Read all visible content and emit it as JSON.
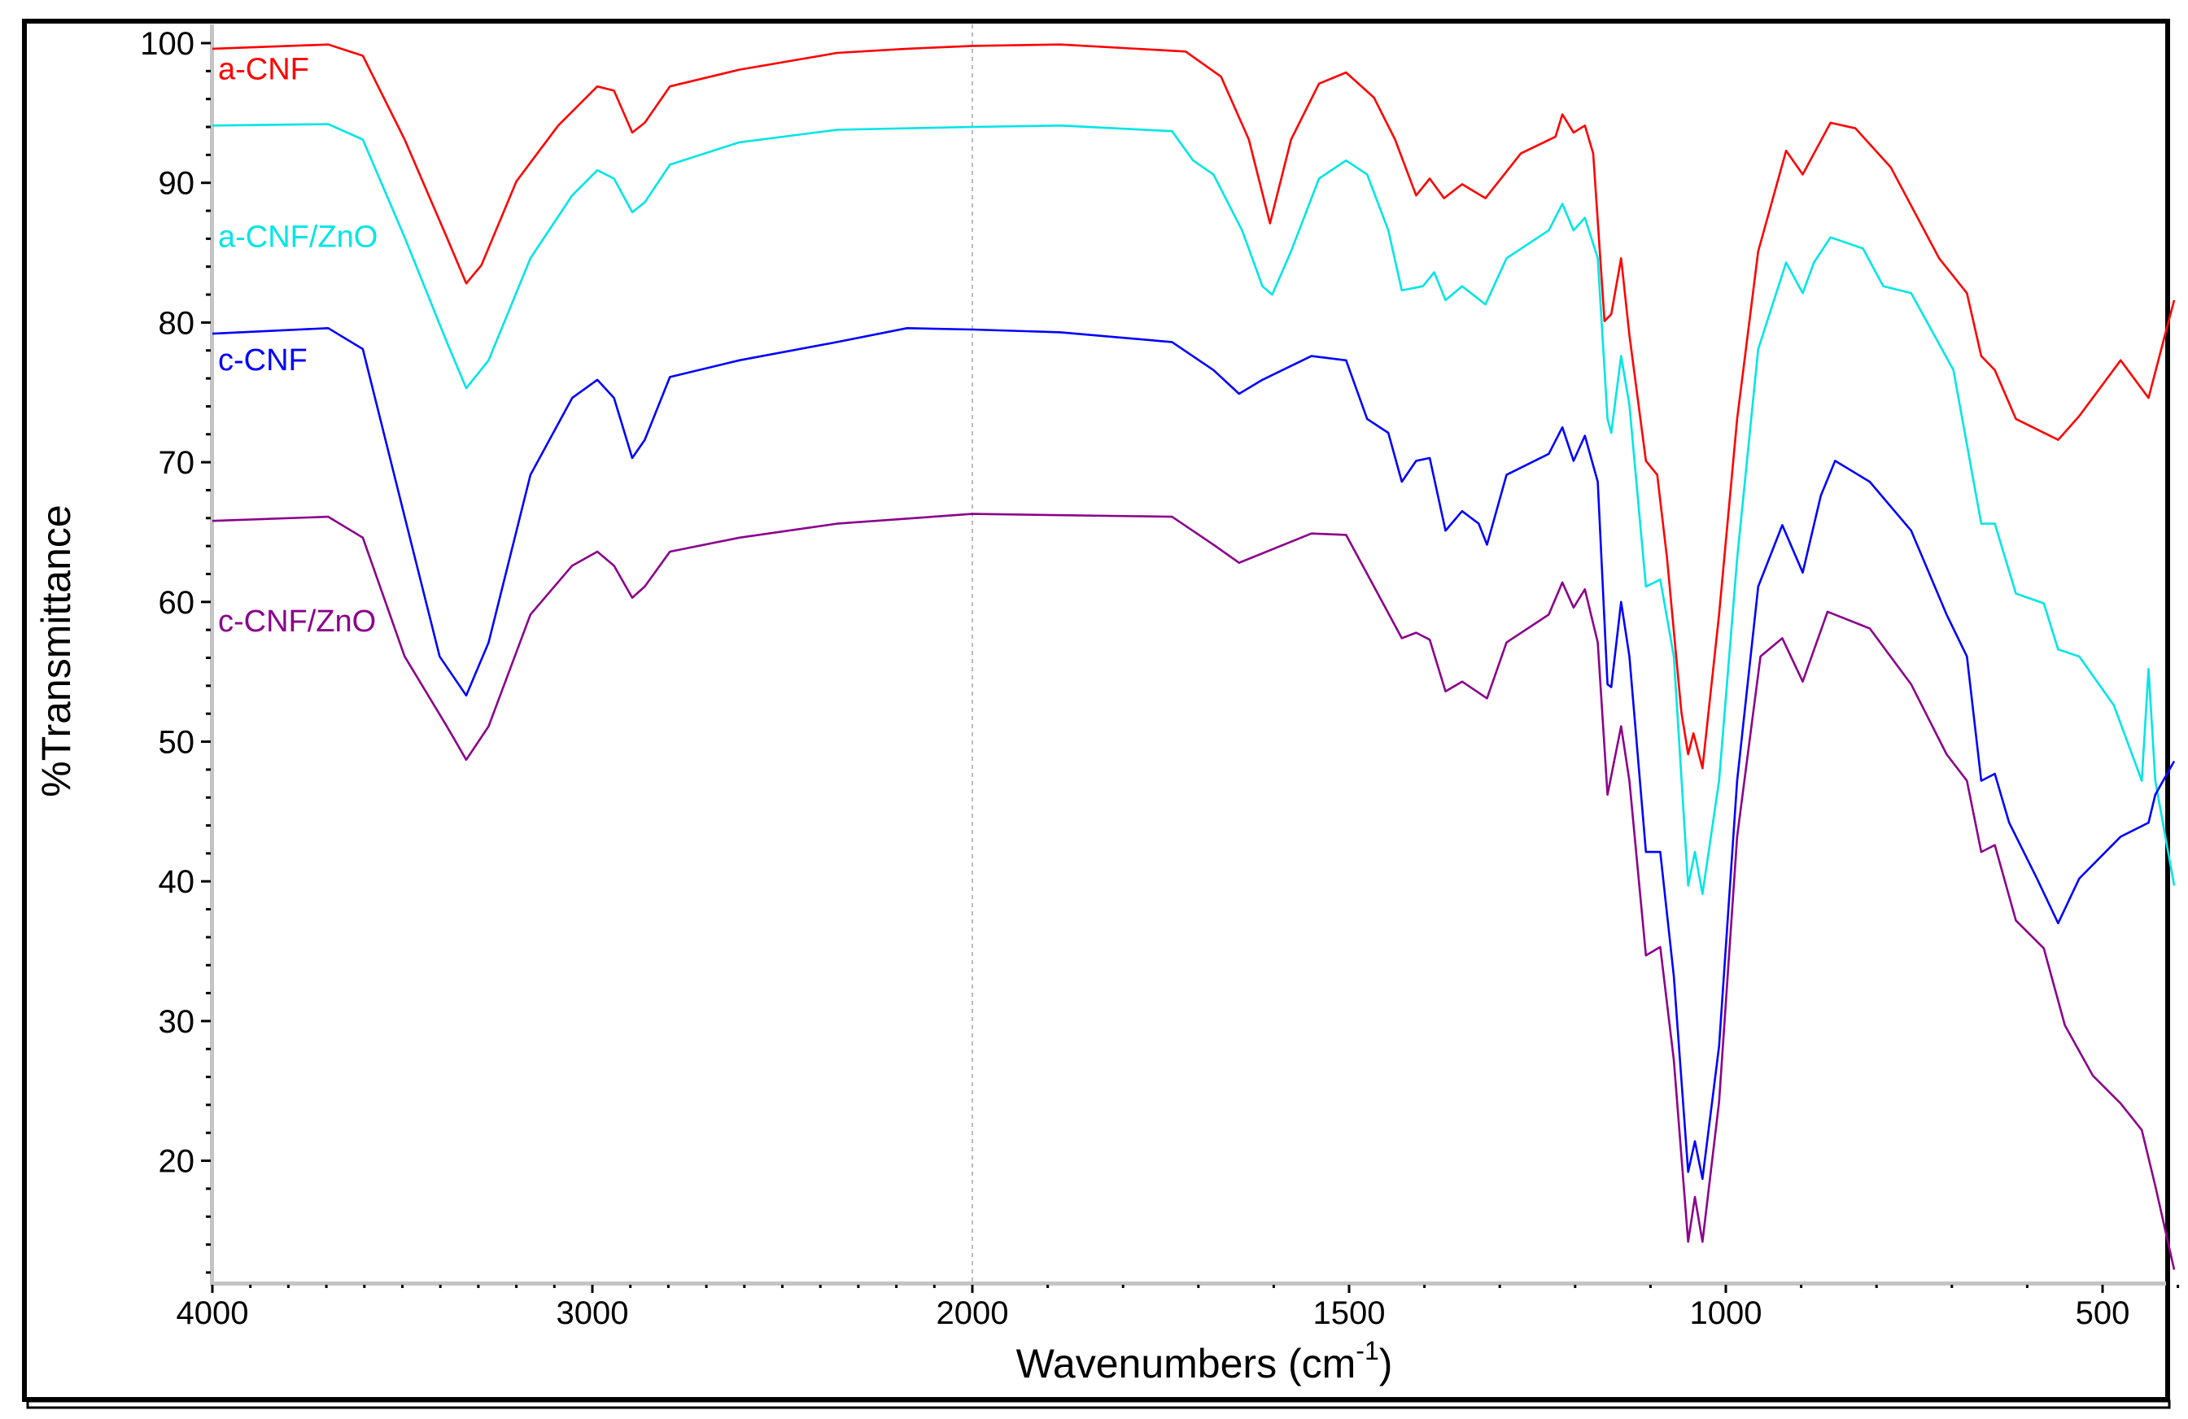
{
  "chart_data": {
    "type": "line",
    "title": "",
    "xlabel": "Wavenumbers (cm",
    "xlabel_sup": "-1",
    "xlabel_close": ")",
    "ylabel": "%Transmittance",
    "xlim": [
      4000,
      400
    ],
    "ylim": [
      11.3,
      101.5
    ],
    "x_scale_break": 2000,
    "x_ticks": [
      4000,
      3000,
      2000,
      1500,
      1000,
      500
    ],
    "y_ticks": [
      20,
      30,
      40,
      50,
      60,
      70,
      80,
      90,
      100
    ],
    "grid": "dashed vertical line at 2000",
    "legend": "inline labels at left",
    "series": [
      {
        "name": "a-CNF",
        "color": "#ff0000",
        "points": [
          [
            4000,
            99.6
          ],
          [
            3695,
            99.9
          ],
          [
            3604,
            99.1
          ],
          [
            3494,
            93.1
          ],
          [
            3383,
            86.1
          ],
          [
            3332,
            82.8
          ],
          [
            3292,
            84.1
          ],
          [
            3200,
            90.1
          ],
          [
            3090,
            94.1
          ],
          [
            2987,
            96.9
          ],
          [
            2943,
            96.6
          ],
          [
            2895,
            93.6
          ],
          [
            2862,
            94.3
          ],
          [
            2796,
            96.9
          ],
          [
            2613,
            98.1
          ],
          [
            2356,
            99.3
          ],
          [
            2172,
            99.6
          ],
          [
            2000,
            99.8
          ],
          [
            1883,
            99.9
          ],
          [
            1717,
            99.4
          ],
          [
            1670,
            97.6
          ],
          [
            1633,
            93.1
          ],
          [
            1605,
            87.1
          ],
          [
            1577,
            93.1
          ],
          [
            1540,
            97.1
          ],
          [
            1504,
            97.9
          ],
          [
            1467,
            96.1
          ],
          [
            1439,
            93.1
          ],
          [
            1411,
            89.1
          ],
          [
            1393,
            90.3
          ],
          [
            1374,
            88.9
          ],
          [
            1350,
            89.9
          ],
          [
            1319,
            88.9
          ],
          [
            1272,
            92.1
          ],
          [
            1226,
            93.3
          ],
          [
            1217,
            94.9
          ],
          [
            1202,
            93.6
          ],
          [
            1187,
            94.1
          ],
          [
            1176,
            92.1
          ],
          [
            1161,
            80.1
          ],
          [
            1152,
            80.6
          ],
          [
            1139,
            84.6
          ],
          [
            1128,
            79.1
          ],
          [
            1106,
            70.1
          ],
          [
            1091,
            69.1
          ],
          [
            1078,
            63.1
          ],
          [
            1059,
            52.1
          ],
          [
            1050,
            49.1
          ],
          [
            1043,
            50.6
          ],
          [
            1031,
            48.1
          ],
          [
            1009,
            59.1
          ],
          [
            985,
            73.1
          ],
          [
            957,
            85.1
          ],
          [
            920,
            92.3
          ],
          [
            898,
            90.6
          ],
          [
            883,
            92.1
          ],
          [
            861,
            94.3
          ],
          [
            828,
            93.9
          ],
          [
            781,
            91.1
          ],
          [
            717,
            84.6
          ],
          [
            680,
            82.1
          ],
          [
            661,
            77.6
          ],
          [
            643,
            76.6
          ],
          [
            615,
            73.1
          ],
          [
            559,
            71.6
          ],
          [
            531,
            73.3
          ],
          [
            476,
            77.3
          ],
          [
            439,
            74.6
          ],
          [
            422,
            78.1
          ],
          [
            405,
            81.6
          ]
        ]
      },
      {
        "name": "a-CNF/ZnO",
        "color": "#00e5e5",
        "points": [
          [
            4000,
            94.1
          ],
          [
            3695,
            94.2
          ],
          [
            3604,
            93.1
          ],
          [
            3494,
            86.1
          ],
          [
            3383,
            78.6
          ],
          [
            3332,
            75.3
          ],
          [
            3273,
            77.3
          ],
          [
            3163,
            84.6
          ],
          [
            3053,
            89.1
          ],
          [
            2987,
            90.9
          ],
          [
            2943,
            90.3
          ],
          [
            2895,
            87.9
          ],
          [
            2862,
            88.6
          ],
          [
            2796,
            91.3
          ],
          [
            2613,
            92.9
          ],
          [
            2356,
            93.8
          ],
          [
            2000,
            94.0
          ],
          [
            1883,
            94.1
          ],
          [
            1735,
            93.7
          ],
          [
            1707,
            91.6
          ],
          [
            1680,
            90.6
          ],
          [
            1642,
            86.6
          ],
          [
            1615,
            82.6
          ],
          [
            1602,
            82.0
          ],
          [
            1577,
            85.1
          ],
          [
            1540,
            90.3
          ],
          [
            1504,
            91.6
          ],
          [
            1476,
            90.6
          ],
          [
            1448,
            86.6
          ],
          [
            1430,
            82.3
          ],
          [
            1402,
            82.6
          ],
          [
            1387,
            83.6
          ],
          [
            1372,
            81.6
          ],
          [
            1350,
            82.6
          ],
          [
            1319,
            81.3
          ],
          [
            1291,
            84.6
          ],
          [
            1235,
            86.6
          ],
          [
            1217,
            88.5
          ],
          [
            1202,
            86.6
          ],
          [
            1187,
            87.5
          ],
          [
            1170,
            84.6
          ],
          [
            1157,
            73.1
          ],
          [
            1152,
            72.1
          ],
          [
            1139,
            77.6
          ],
          [
            1128,
            74.1
          ],
          [
            1106,
            61.1
          ],
          [
            1087,
            61.6
          ],
          [
            1069,
            56.1
          ],
          [
            1050,
            39.7
          ],
          [
            1041,
            42.1
          ],
          [
            1031,
            39.1
          ],
          [
            1009,
            47.2
          ],
          [
            985,
            63.1
          ],
          [
            957,
            78.1
          ],
          [
            920,
            84.3
          ],
          [
            898,
            82.1
          ],
          [
            883,
            84.3
          ],
          [
            861,
            86.1
          ],
          [
            818,
            85.3
          ],
          [
            791,
            82.6
          ],
          [
            754,
            82.1
          ],
          [
            698,
            76.6
          ],
          [
            661,
            65.6
          ],
          [
            643,
            65.6
          ],
          [
            615,
            60.6
          ],
          [
            578,
            59.9
          ],
          [
            559,
            56.6
          ],
          [
            531,
            56.1
          ],
          [
            485,
            52.6
          ],
          [
            448,
            47.2
          ],
          [
            439,
            55.2
          ],
          [
            430,
            47.2
          ],
          [
            405,
            39.7
          ]
        ]
      },
      {
        "name": "c-CNF",
        "color": "#0000ff",
        "points": [
          [
            4000,
            79.2
          ],
          [
            3695,
            79.6
          ],
          [
            3604,
            78.1
          ],
          [
            3494,
            66.1
          ],
          [
            3402,
            56.1
          ],
          [
            3332,
            53.3
          ],
          [
            3273,
            57.1
          ],
          [
            3163,
            69.1
          ],
          [
            3053,
            74.6
          ],
          [
            2987,
            75.9
          ],
          [
            2943,
            74.6
          ],
          [
            2895,
            70.3
          ],
          [
            2862,
            71.6
          ],
          [
            2796,
            76.1
          ],
          [
            2613,
            77.3
          ],
          [
            2356,
            78.6
          ],
          [
            2172,
            79.6
          ],
          [
            2000,
            79.5
          ],
          [
            1883,
            79.3
          ],
          [
            1735,
            78.6
          ],
          [
            1680,
            76.6
          ],
          [
            1646,
            74.9
          ],
          [
            1615,
            75.9
          ],
          [
            1550,
            77.6
          ],
          [
            1504,
            77.3
          ],
          [
            1476,
            73.1
          ],
          [
            1448,
            72.1
          ],
          [
            1430,
            68.6
          ],
          [
            1411,
            70.1
          ],
          [
            1393,
            70.3
          ],
          [
            1372,
            65.1
          ],
          [
            1350,
            66.5
          ],
          [
            1328,
            65.6
          ],
          [
            1317,
            64.1
          ],
          [
            1291,
            69.1
          ],
          [
            1235,
            70.6
          ],
          [
            1217,
            72.5
          ],
          [
            1202,
            70.1
          ],
          [
            1187,
            71.9
          ],
          [
            1170,
            68.6
          ],
          [
            1157,
            54.1
          ],
          [
            1152,
            53.9
          ],
          [
            1139,
            60.0
          ],
          [
            1128,
            56.1
          ],
          [
            1106,
            42.1
          ],
          [
            1087,
            42.1
          ],
          [
            1069,
            33.2
          ],
          [
            1050,
            19.2
          ],
          [
            1041,
            21.4
          ],
          [
            1031,
            18.7
          ],
          [
            1009,
            28.2
          ],
          [
            985,
            47.2
          ],
          [
            957,
            61.1
          ],
          [
            925,
            65.5
          ],
          [
            898,
            62.1
          ],
          [
            874,
            67.6
          ],
          [
            855,
            70.1
          ],
          [
            809,
            68.6
          ],
          [
            754,
            65.1
          ],
          [
            707,
            59.1
          ],
          [
            680,
            56.1
          ],
          [
            661,
            47.2
          ],
          [
            643,
            47.7
          ],
          [
            624,
            44.2
          ],
          [
            587,
            40.2
          ],
          [
            559,
            37.0
          ],
          [
            531,
            40.2
          ],
          [
            476,
            43.2
          ],
          [
            439,
            44.2
          ],
          [
            430,
            46.2
          ],
          [
            405,
            48.6
          ]
        ]
      },
      {
        "name": "c-CNF/ZnO",
        "color": "#8b008b",
        "points": [
          [
            4000,
            65.8
          ],
          [
            3695,
            66.1
          ],
          [
            3604,
            64.6
          ],
          [
            3494,
            56.1
          ],
          [
            3383,
            51.1
          ],
          [
            3332,
            48.7
          ],
          [
            3273,
            51.1
          ],
          [
            3163,
            59.1
          ],
          [
            3053,
            62.6
          ],
          [
            2987,
            63.6
          ],
          [
            2943,
            62.6
          ],
          [
            2895,
            60.3
          ],
          [
            2862,
            61.1
          ],
          [
            2796,
            63.6
          ],
          [
            2613,
            64.6
          ],
          [
            2356,
            65.6
          ],
          [
            2000,
            66.3
          ],
          [
            1735,
            66.1
          ],
          [
            1680,
            64.1
          ],
          [
            1646,
            62.8
          ],
          [
            1550,
            64.9
          ],
          [
            1504,
            64.8
          ],
          [
            1467,
            61.1
          ],
          [
            1430,
            57.4
          ],
          [
            1411,
            57.8
          ],
          [
            1393,
            57.3
          ],
          [
            1372,
            53.6
          ],
          [
            1350,
            54.3
          ],
          [
            1317,
            53.1
          ],
          [
            1291,
            57.1
          ],
          [
            1235,
            59.1
          ],
          [
            1217,
            61.4
          ],
          [
            1202,
            59.6
          ],
          [
            1187,
            60.9
          ],
          [
            1170,
            57.1
          ],
          [
            1157,
            46.2
          ],
          [
            1139,
            51.1
          ],
          [
            1128,
            47.2
          ],
          [
            1106,
            34.7
          ],
          [
            1087,
            35.3
          ],
          [
            1069,
            27.2
          ],
          [
            1050,
            14.2
          ],
          [
            1041,
            17.4
          ],
          [
            1031,
            14.2
          ],
          [
            1009,
            24.2
          ],
          [
            985,
            43.2
          ],
          [
            954,
            56.1
          ],
          [
            925,
            57.4
          ],
          [
            898,
            54.3
          ],
          [
            865,
            59.3
          ],
          [
            809,
            58.1
          ],
          [
            754,
            54.1
          ],
          [
            707,
            49.1
          ],
          [
            680,
            47.2
          ],
          [
            661,
            42.1
          ],
          [
            643,
            42.6
          ],
          [
            615,
            37.2
          ],
          [
            578,
            35.2
          ],
          [
            550,
            29.7
          ],
          [
            513,
            26.1
          ],
          [
            476,
            24.1
          ],
          [
            448,
            22.2
          ],
          [
            430,
            18.2
          ],
          [
            405,
            12.2
          ]
        ]
      }
    ],
    "labels": [
      {
        "text": "a-CNF",
        "series": 0,
        "at_y": 97.4
      },
      {
        "text": "a-CNF/ZnO",
        "series": 1,
        "at_y": 85.4
      },
      {
        "text": "c-CNF",
        "series": 2,
        "at_y": 76.6
      },
      {
        "text": "c-CNF/ZnO",
        "series": 3,
        "at_y": 57.9
      }
    ]
  }
}
